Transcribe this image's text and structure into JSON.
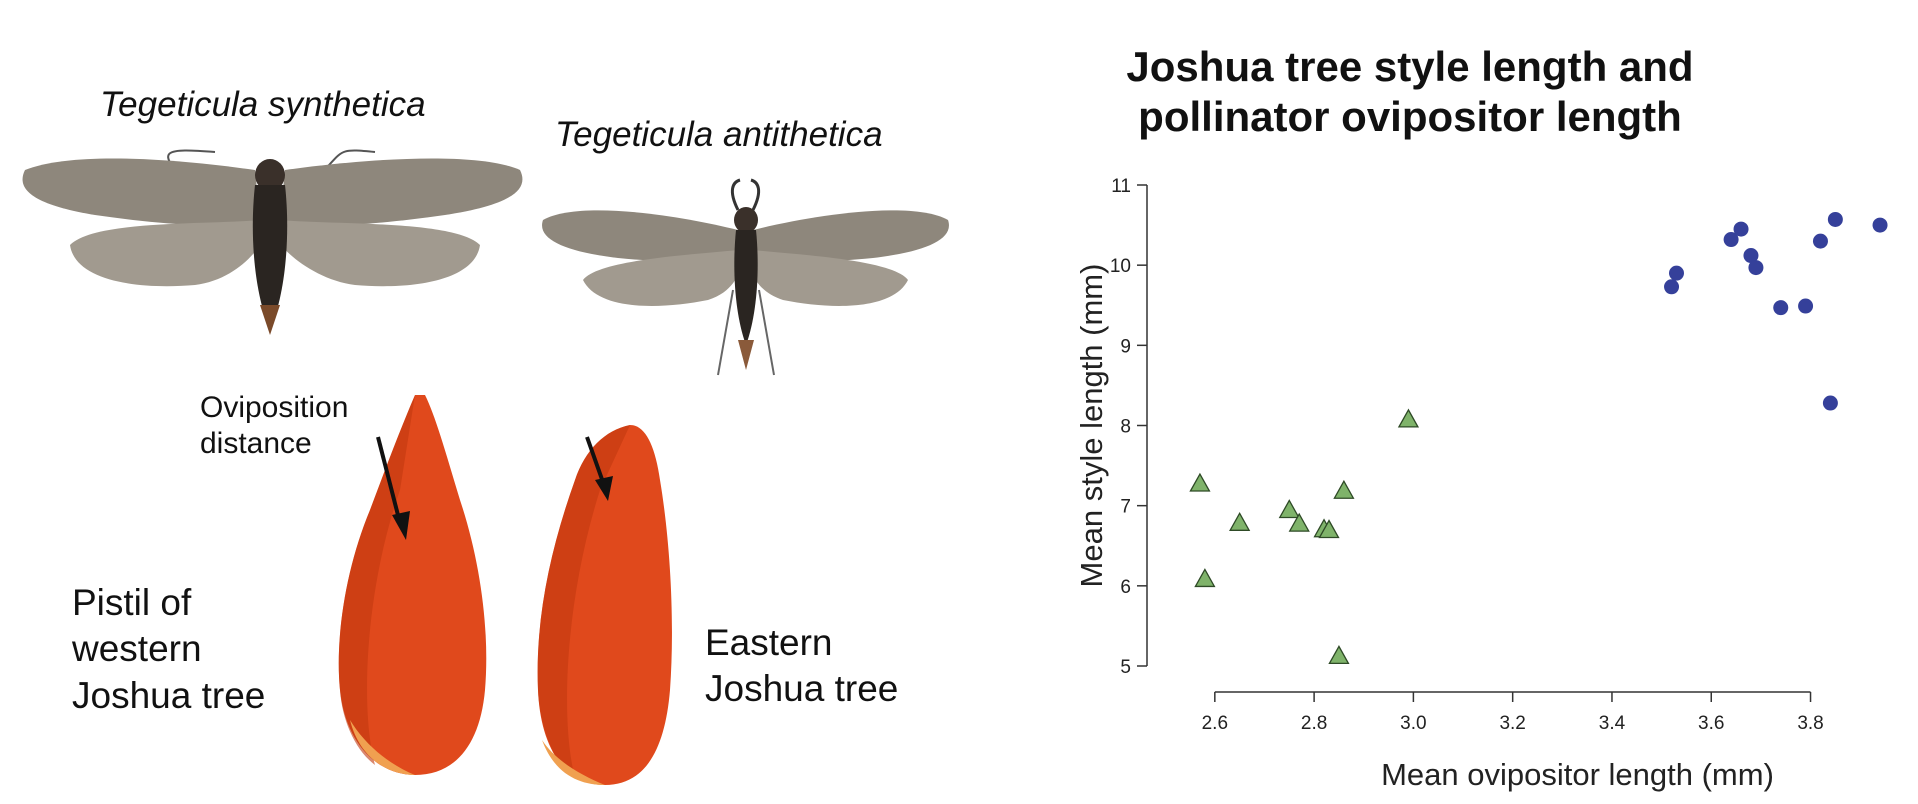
{
  "figure": {
    "moth_left_name": "Tegeticula synthetica",
    "moth_right_name": "Tegeticula antithetica",
    "oviposition_label": "Oviposition\ndistance",
    "pistil_western_label": "Pistil of\nwestern\nJoshua tree",
    "pistil_eastern_label": "Eastern\nJoshua tree",
    "colors": {
      "pistil": "#e0491c",
      "pistil_dark": "#c2380f",
      "moth_wing": "#8e877c",
      "moth_body": "#2a2521"
    }
  },
  "chart_data": {
    "type": "scatter",
    "title": "Joshua tree style length and\npollinator ovipositor length",
    "xlabel": "Mean ovipositor length (mm)",
    "ylabel": "Mean style length (mm)",
    "xlim": [
      2.55,
      3.95
    ],
    "ylim": [
      5,
      11
    ],
    "xticks": [
      "2.6",
      "2.8",
      "3.0",
      "3.2",
      "3.4",
      "3.6",
      "3.8"
    ],
    "yticks": [
      "5",
      "6",
      "7",
      "8",
      "9",
      "10",
      "11"
    ],
    "series": [
      {
        "marker": "triangle",
        "color": "#7fb36a",
        "points": [
          {
            "x": 2.57,
            "y": 7.27
          },
          {
            "x": 2.58,
            "y": 6.08
          },
          {
            "x": 2.65,
            "y": 6.78
          },
          {
            "x": 2.75,
            "y": 6.94
          },
          {
            "x": 2.77,
            "y": 6.77
          },
          {
            "x": 2.82,
            "y": 6.7
          },
          {
            "x": 2.83,
            "y": 6.69
          },
          {
            "x": 2.86,
            "y": 7.18
          },
          {
            "x": 2.85,
            "y": 5.12
          },
          {
            "x": 2.99,
            "y": 8.07
          }
        ]
      },
      {
        "marker": "circle",
        "color": "#35409a",
        "points": [
          {
            "x": 3.52,
            "y": 9.73
          },
          {
            "x": 3.53,
            "y": 9.9
          },
          {
            "x": 3.64,
            "y": 10.32
          },
          {
            "x": 3.66,
            "y": 10.45
          },
          {
            "x": 3.68,
            "y": 10.12
          },
          {
            "x": 3.69,
            "y": 9.97
          },
          {
            "x": 3.74,
            "y": 9.47
          },
          {
            "x": 3.79,
            "y": 9.49
          },
          {
            "x": 3.82,
            "y": 10.3
          },
          {
            "x": 3.85,
            "y": 10.57
          },
          {
            "x": 3.94,
            "y": 10.5
          },
          {
            "x": 3.84,
            "y": 8.28
          }
        ]
      }
    ]
  }
}
